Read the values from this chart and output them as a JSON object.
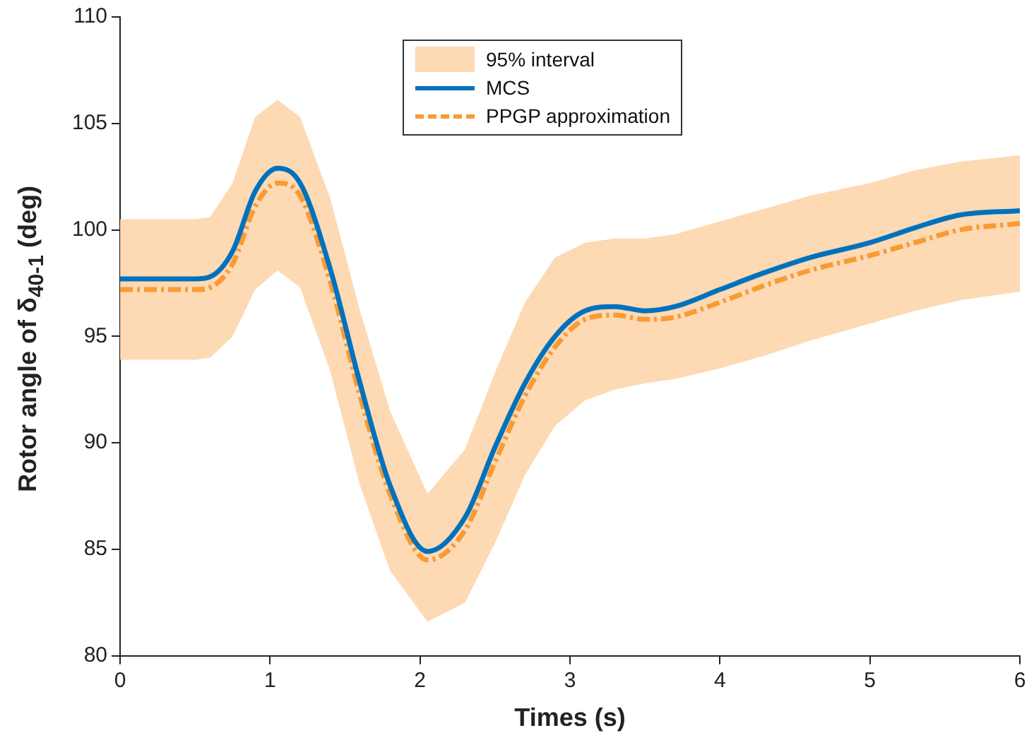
{
  "chart_data": {
    "type": "line",
    "xlabel": "Times (s)",
    "ylabel": "Rotor angle of δ$_{40-1}$ (deg)",
    "x": [
      0,
      0.25,
      0.5,
      0.6,
      0.75,
      0.9,
      1.05,
      1.2,
      1.4,
      1.6,
      1.8,
      2.05,
      2.3,
      2.5,
      2.7,
      2.9,
      3.1,
      3.3,
      3.5,
      3.7,
      4,
      4.3,
      4.6,
      5,
      5.3,
      5.6,
      6
    ],
    "xlim": [
      0,
      6
    ],
    "xticks": [
      0,
      1,
      2,
      3,
      4,
      5,
      6
    ],
    "ylim": [
      80,
      110
    ],
    "yticks": [
      80,
      85,
      90,
      95,
      100,
      105,
      110
    ],
    "grid": false,
    "legend": "top",
    "marker": "none",
    "series": [
      {
        "name": "95% interval",
        "type": "area",
        "color": "#fdd9b4",
        "values": [
          null,
          null,
          null,
          null,
          null,
          null,
          null,
          null,
          null,
          null,
          null,
          null,
          null,
          null,
          null,
          null,
          null,
          null,
          null,
          null,
          null,
          null,
          null,
          null,
          null,
          null,
          null
        ],
        "lower": [
          93.9,
          93.9,
          93.9,
          94.0,
          95.0,
          97.2,
          98.1,
          97.3,
          93.4,
          88.0,
          84.0,
          81.6,
          82.5,
          85.3,
          88.5,
          90.8,
          92.0,
          92.5,
          92.8,
          93.0,
          93.5,
          94.1,
          94.8,
          95.6,
          96.2,
          96.7,
          97.1
        ],
        "upper": [
          100.5,
          100.5,
          100.5,
          100.6,
          102.2,
          105.3,
          106.1,
          105.3,
          101.5,
          96.2,
          91.5,
          87.6,
          89.7,
          93.3,
          96.6,
          98.7,
          99.4,
          99.6,
          99.6,
          99.8,
          100.4,
          101.0,
          101.6,
          102.2,
          102.8,
          103.2,
          103.5
        ]
      },
      {
        "name": "MCS",
        "type": "line",
        "color": "#0072bd",
        "line_style": "solid",
        "values": [
          97.7,
          97.7,
          97.7,
          97.8,
          99.0,
          101.8,
          102.9,
          102.2,
          98.2,
          92.8,
          88.0,
          84.9,
          86.5,
          89.8,
          92.8,
          95.0,
          96.2,
          96.4,
          96.2,
          96.4,
          97.2,
          98.0,
          98.7,
          99.4,
          100.1,
          100.7,
          100.9
        ]
      },
      {
        "name": "PPGP approximation",
        "type": "line",
        "color": "#f99a32",
        "line_style": "dashed",
        "values": [
          97.2,
          97.2,
          97.2,
          97.3,
          98.4,
          101.1,
          102.2,
          101.6,
          97.6,
          92.2,
          87.6,
          84.5,
          85.9,
          89.1,
          92.2,
          94.5,
          95.8,
          96.0,
          95.8,
          95.9,
          96.6,
          97.4,
          98.1,
          98.8,
          99.4,
          100.0,
          100.3
        ]
      }
    ]
  }
}
